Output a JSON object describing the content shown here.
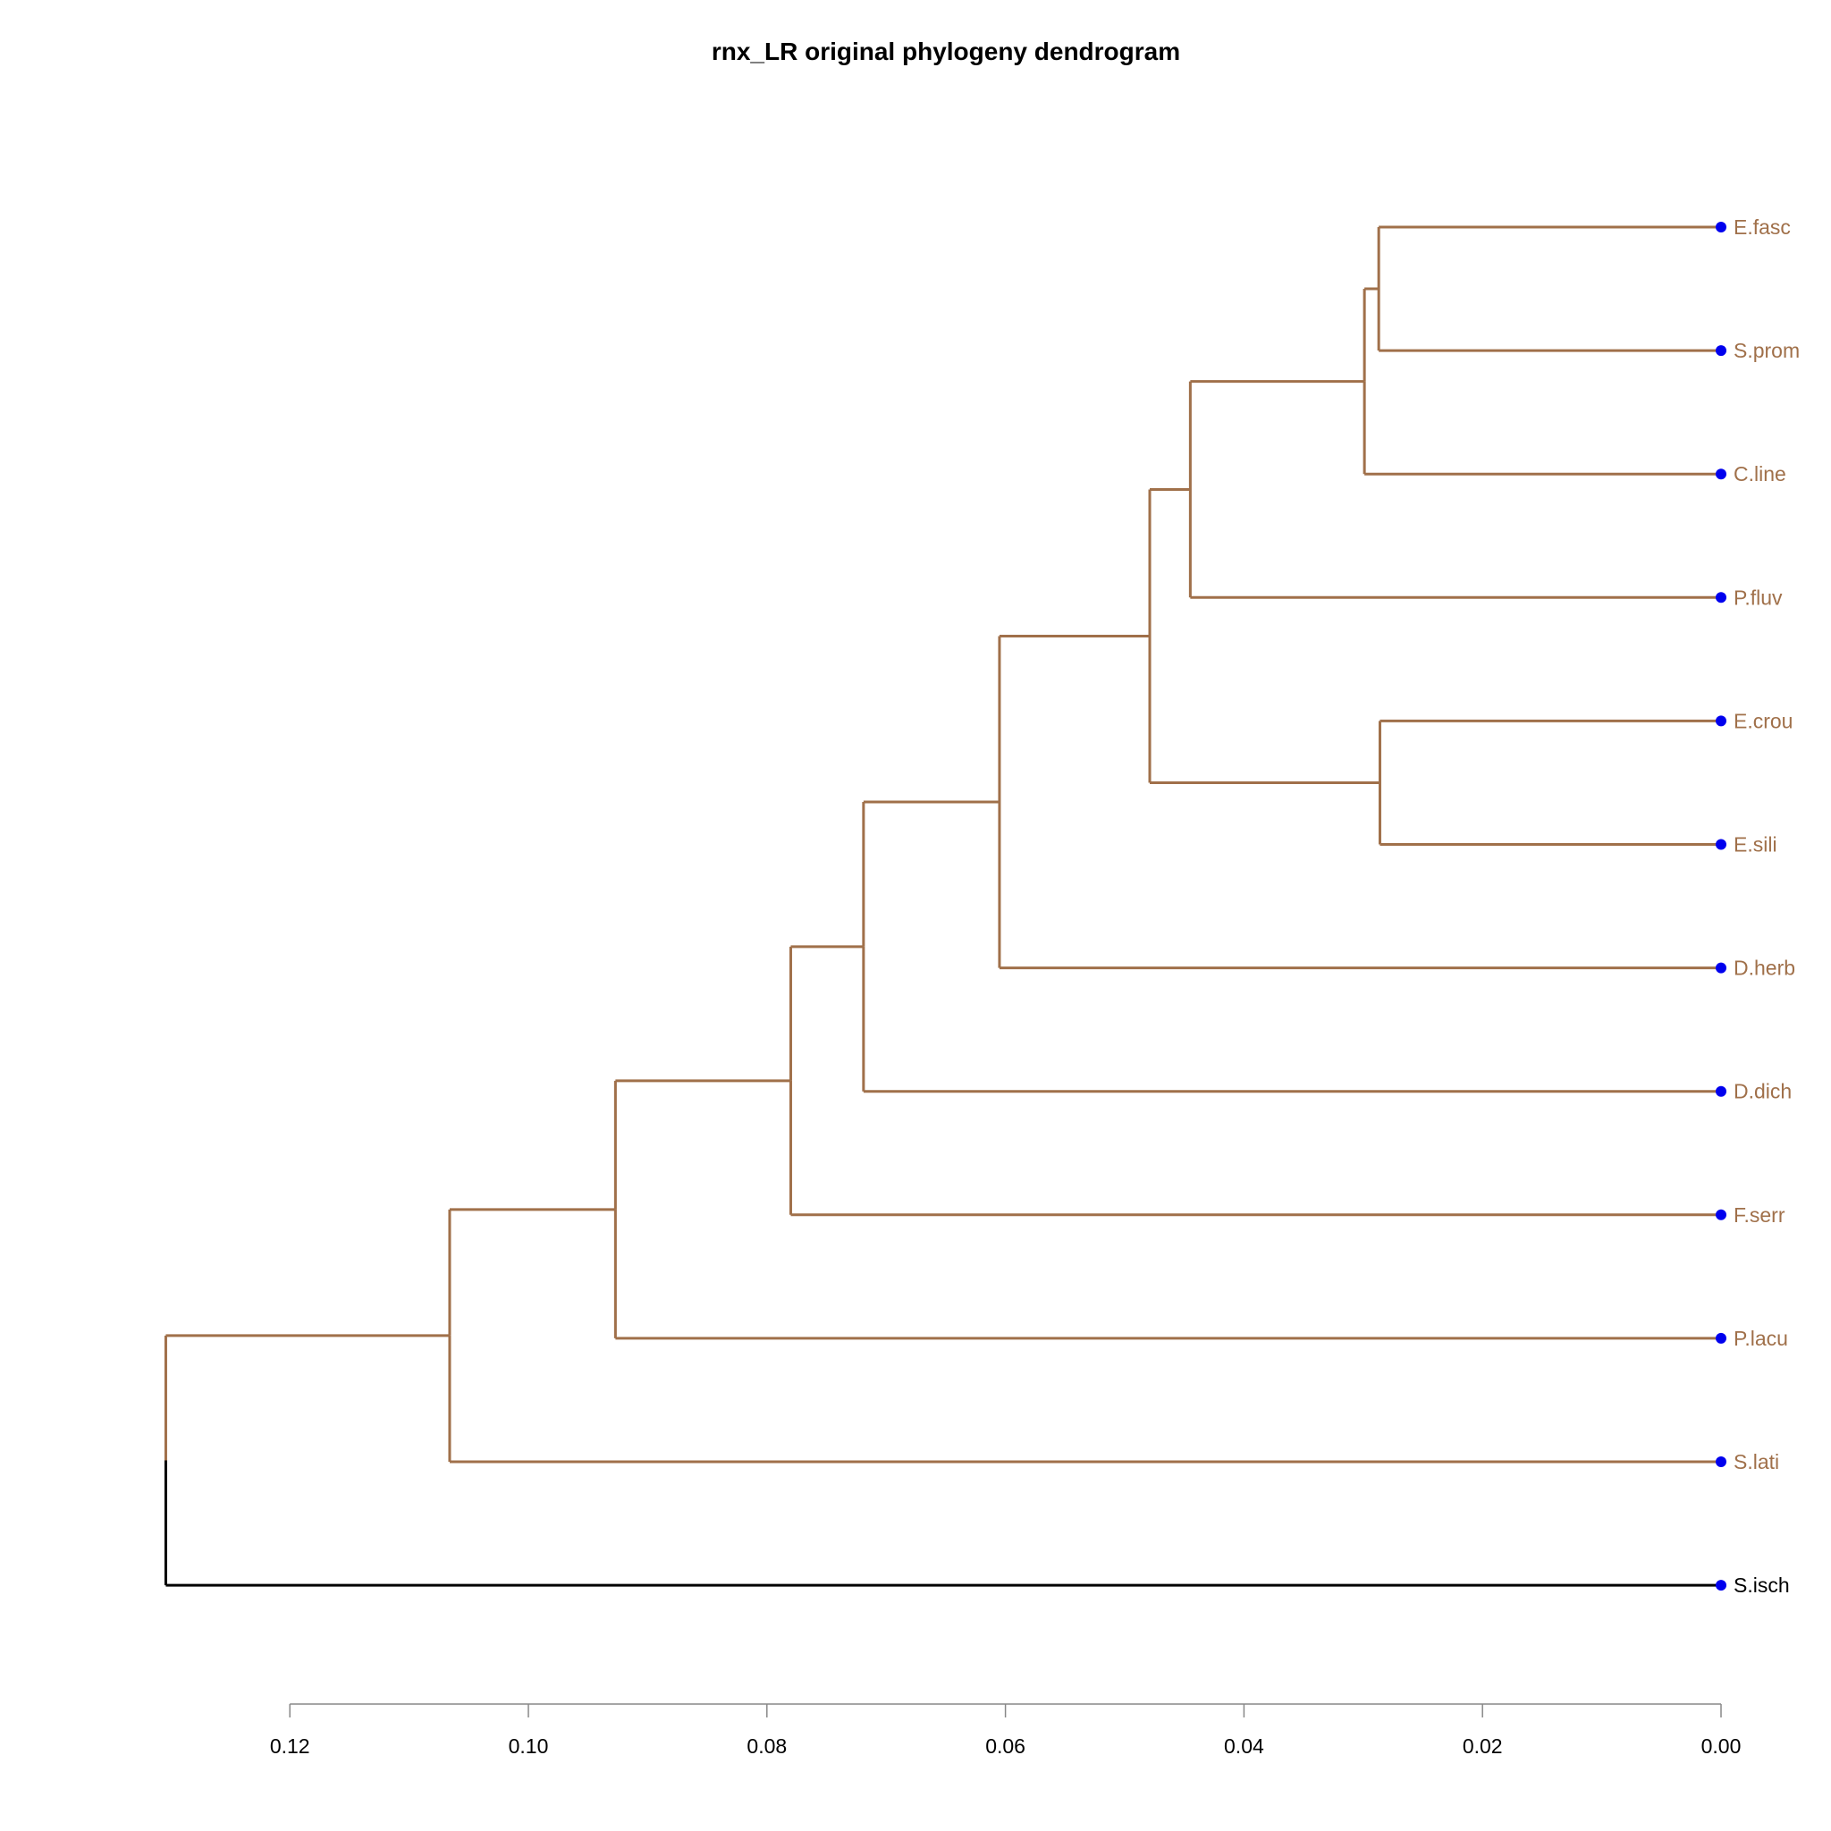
{
  "title": "rnx_LR original phylogeny dendrogram",
  "colors": {
    "branch": "#A0704A",
    "root": "#000000",
    "tip": "#0000EE",
    "axis": "#888888",
    "text": "#000000"
  },
  "tips": [
    {
      "name": "E.fasc",
      "group": "ingroup"
    },
    {
      "name": "S.prom",
      "group": "ingroup"
    },
    {
      "name": "C.line",
      "group": "ingroup"
    },
    {
      "name": "P.fluv",
      "group": "ingroup"
    },
    {
      "name": "E.crou",
      "group": "ingroup"
    },
    {
      "name": "E.sili",
      "group": "ingroup"
    },
    {
      "name": "D.herb",
      "group": "ingroup"
    },
    {
      "name": "D.dich",
      "group": "ingroup"
    },
    {
      "name": "F.serr",
      "group": "ingroup"
    },
    {
      "name": "P.lacu",
      "group": "ingroup"
    },
    {
      "name": "S.lati",
      "group": "ingroup"
    },
    {
      "name": "S.isch",
      "group": "outgroup"
    }
  ],
  "nodes": [
    {
      "id": "n1",
      "height": 0.0287,
      "children": [
        "E.fasc",
        "S.prom"
      ]
    },
    {
      "id": "n2",
      "height": 0.0299,
      "children": [
        "n1",
        "C.line"
      ]
    },
    {
      "id": "n3",
      "height": 0.0445,
      "children": [
        "n2",
        "P.fluv"
      ]
    },
    {
      "id": "n4",
      "height": 0.0286,
      "children": [
        "E.crou",
        "E.sili"
      ]
    },
    {
      "id": "n5",
      "height": 0.0479,
      "children": [
        "n3",
        "n4"
      ]
    },
    {
      "id": "n6",
      "height": 0.0605,
      "children": [
        "n5",
        "D.herb"
      ]
    },
    {
      "id": "n7",
      "height": 0.0719,
      "children": [
        "n6",
        "D.dich"
      ]
    },
    {
      "id": "n8",
      "height": 0.078,
      "children": [
        "n7",
        "F.serr"
      ]
    },
    {
      "id": "n9",
      "height": 0.0927,
      "children": [
        "n8",
        "P.lacu"
      ]
    },
    {
      "id": "n10",
      "height": 0.1066,
      "children": [
        "n9",
        "S.lati"
      ]
    },
    {
      "id": "root",
      "height": 0.1304,
      "children": [
        "n10",
        "S.isch"
      ]
    }
  ],
  "axis": {
    "ticks": [
      "0.12",
      "0.10",
      "0.08",
      "0.06",
      "0.04",
      "0.02",
      "0.00"
    ],
    "reversed": true
  }
}
